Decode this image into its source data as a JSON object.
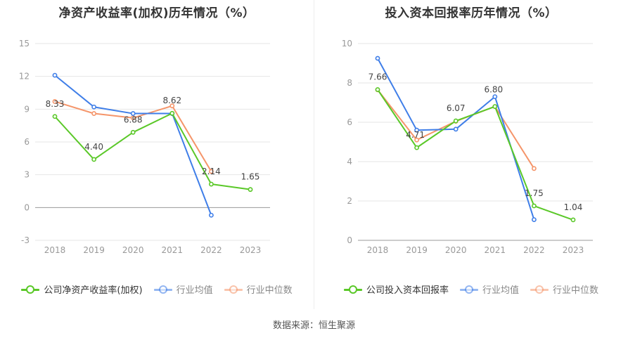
{
  "footer": {
    "source": "数据来源：恒生聚源"
  },
  "colors": {
    "company": "#5ac828",
    "average": "#3f7ee8",
    "median": "#f5956a"
  },
  "chart_data": [
    {
      "type": "line",
      "title": "净资产收益率(加权)历年情况（%）",
      "categories": [
        "2018",
        "2019",
        "2020",
        "2021",
        "2022",
        "2023"
      ],
      "ylim": [
        -3,
        15
      ],
      "yticks": [
        -3,
        0,
        3,
        6,
        9,
        12,
        15
      ],
      "grid": true,
      "legend_position": "bottom",
      "series": [
        {
          "name": "公司净资产收益率(加权)",
          "color": "#5ac828",
          "values": [
            8.33,
            4.4,
            6.88,
            8.62,
            2.14,
            1.65
          ],
          "labels": [
            "8.33",
            "4.40",
            "6.88",
            "8.62",
            "2.14",
            "1.65"
          ]
        },
        {
          "name": "行业均值",
          "color": "#3f7ee8",
          "values": [
            12.1,
            9.2,
            8.6,
            8.6,
            -0.7,
            null
          ]
        },
        {
          "name": "行业中位数",
          "color": "#f5956a",
          "values": [
            9.7,
            8.6,
            8.2,
            9.3,
            3.3,
            null
          ]
        }
      ]
    },
    {
      "type": "line",
      "title": "投入资本回报率历年情况（%）",
      "categories": [
        "2018",
        "2019",
        "2020",
        "2021",
        "2022",
        "2023"
      ],
      "ylim": [
        0,
        10
      ],
      "yticks": [
        0,
        2,
        4,
        6,
        8,
        10
      ],
      "grid": true,
      "legend_position": "bottom",
      "series": [
        {
          "name": "公司投入资本回报率",
          "color": "#5ac828",
          "values": [
            7.66,
            4.71,
            6.07,
            6.8,
            1.75,
            1.04
          ],
          "labels": [
            "7.66",
            "4.71",
            "6.07",
            "6.80",
            "1.75",
            "1.04"
          ]
        },
        {
          "name": "行业均值",
          "color": "#3f7ee8",
          "values": [
            9.25,
            5.6,
            5.65,
            7.3,
            1.05,
            null
          ]
        },
        {
          "name": "行业中位数",
          "color": "#f5956a",
          "values": [
            7.65,
            5.1,
            6.05,
            6.8,
            3.65,
            null
          ]
        }
      ]
    }
  ]
}
